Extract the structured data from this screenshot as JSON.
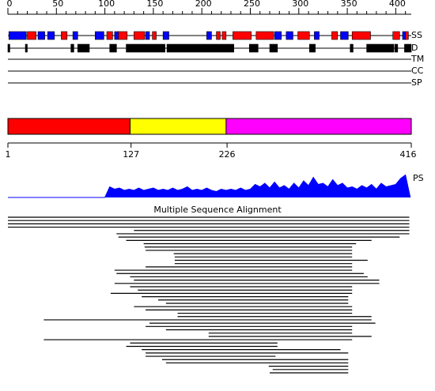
{
  "length": 416,
  "ruler": {
    "ticks": [
      0,
      50,
      100,
      150,
      200,
      250,
      300,
      350,
      400
    ],
    "minor": [
      10,
      20,
      30,
      40,
      60,
      70,
      80,
      90,
      110,
      120,
      130,
      140,
      160,
      170,
      180,
      190,
      210,
      220,
      230,
      240,
      260,
      270,
      280,
      290,
      310,
      320,
      330,
      340,
      360,
      370,
      380,
      390,
      410
    ]
  },
  "tracks": [
    "SS",
    "D",
    "TM",
    "CC",
    "SP"
  ],
  "ss": {
    "helix_color": "#ff0000",
    "strand_color": "#0000ff",
    "helices": [
      [
        21,
        29
      ],
      [
        56,
        61
      ],
      [
        103,
        108
      ],
      [
        115,
        123
      ],
      [
        131,
        141
      ],
      [
        150,
        153
      ],
      [
        216,
        219
      ],
      [
        222,
        225
      ],
      [
        233,
        251
      ],
      [
        257,
        274
      ],
      [
        300,
        311
      ],
      [
        335,
        340
      ],
      [
        356,
        374
      ],
      [
        398,
        404
      ],
      [
        411,
        413
      ]
    ],
    "strands": [
      [
        2,
        19
      ],
      [
        32,
        38
      ],
      [
        42,
        48
      ],
      [
        68,
        72
      ],
      [
        91,
        99
      ],
      [
        111,
        114
      ],
      [
        143,
        146
      ],
      [
        161,
        166
      ],
      [
        206,
        210
      ],
      [
        276,
        282
      ],
      [
        288,
        294
      ],
      [
        317,
        321
      ],
      [
        344,
        351
      ],
      [
        408,
        410
      ]
    ]
  },
  "disorder": [
    [
      1,
      2
    ],
    [
      19,
      20
    ],
    [
      66,
      68
    ],
    [
      73,
      84
    ],
    [
      106,
      112
    ],
    [
      123,
      162
    ],
    [
      165,
      233
    ],
    [
      250,
      258
    ],
    [
      271,
      278
    ],
    [
      312,
      317
    ],
    [
      354,
      356
    ],
    [
      371,
      398
    ],
    [
      400,
      402
    ],
    [
      410,
      416
    ]
  ],
  "domains": {
    "boundaries": [
      1,
      127,
      226,
      416
    ],
    "colors": [
      "#ff0000",
      "#ffff00",
      "#ff00ff"
    ]
  },
  "ps": {
    "label": "PS",
    "color": "#0000ff",
    "ylim": [
      0,
      1
    ],
    "x": [
      100,
      105,
      110,
      115,
      120,
      125,
      130,
      135,
      140,
      145,
      150,
      155,
      160,
      165,
      170,
      175,
      180,
      185,
      190,
      195,
      200,
      205,
      210,
      215,
      220,
      225,
      230,
      235,
      240,
      245,
      250,
      255,
      260,
      265,
      270,
      275,
      280,
      285,
      290,
      295,
      300,
      305,
      310,
      315,
      320,
      325,
      330,
      335,
      340,
      345,
      350,
      355,
      360,
      365,
      370,
      375,
      380,
      385,
      390,
      395,
      400,
      405,
      410,
      415
    ],
    "values": [
      0,
      0.45,
      0.35,
      0.4,
      0.3,
      0.35,
      0.3,
      0.4,
      0.3,
      0.35,
      0.4,
      0.3,
      0.35,
      0.3,
      0.4,
      0.3,
      0.35,
      0.45,
      0.3,
      0.35,
      0.3,
      0.4,
      0.3,
      0.25,
      0.35,
      0.3,
      0.35,
      0.3,
      0.4,
      0.3,
      0.35,
      0.55,
      0.45,
      0.6,
      0.4,
      0.65,
      0.4,
      0.5,
      0.35,
      0.6,
      0.4,
      0.7,
      0.5,
      0.85,
      0.55,
      0.6,
      0.45,
      0.75,
      0.5,
      0.6,
      0.4,
      0.45,
      0.35,
      0.5,
      0.4,
      0.55,
      0.35,
      0.6,
      0.45,
      0.5,
      0.55,
      0.8,
      0.95,
      0
    ]
  },
  "msa": {
    "title": "Multiple Sequence Alignment",
    "rows": [
      [
        1,
        414
      ],
      [
        1,
        414
      ],
      [
        1,
        414
      ],
      [
        1,
        414
      ],
      [
        131,
        414
      ],
      [
        113,
        414
      ],
      [
        115,
        404
      ],
      [
        123,
        375
      ],
      [
        141,
        359
      ],
      [
        142,
        355
      ],
      [
        143,
        355
      ],
      [
        172,
        355
      ],
      [
        173,
        355
      ],
      [
        173,
        371
      ],
      [
        173,
        355
      ],
      [
        143,
        355
      ],
      [
        111,
        355
      ],
      [
        113,
        367
      ],
      [
        127,
        371
      ],
      [
        131,
        383
      ],
      [
        111,
        383
      ],
      [
        127,
        355
      ],
      [
        135,
        355
      ],
      [
        107,
        355
      ],
      [
        139,
        351
      ],
      [
        156,
        351
      ],
      [
        164,
        351
      ],
      [
        131,
        355
      ],
      [
        143,
        355
      ],
      [
        176,
        355
      ],
      [
        176,
        375
      ],
      [
        38,
        375
      ],
      [
        147,
        379
      ],
      [
        143,
        355
      ],
      [
        164,
        355
      ],
      [
        208,
        355
      ],
      [
        208,
        375
      ],
      [
        38,
        355
      ],
      [
        127,
        278
      ],
      [
        123,
        278
      ],
      [
        139,
        343
      ],
      [
        143,
        351
      ],
      [
        143,
        276
      ],
      [
        160,
        351
      ],
      [
        164,
        351
      ],
      [
        270,
        351
      ],
      [
        274,
        351
      ],
      [
        271,
        351
      ]
    ]
  }
}
